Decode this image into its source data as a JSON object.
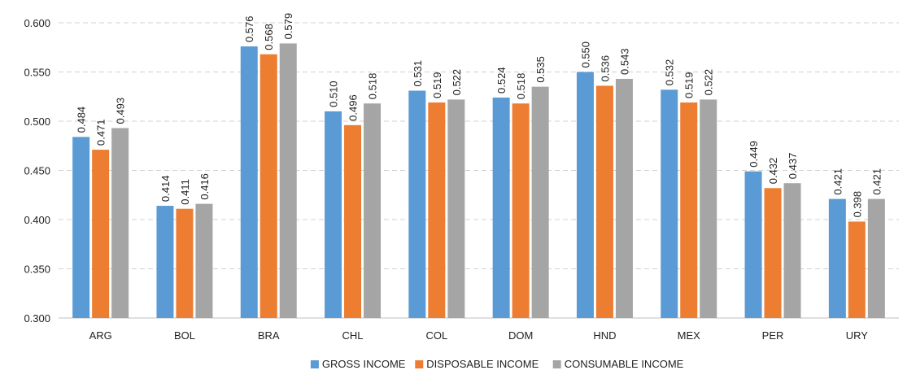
{
  "chart_data": {
    "type": "bar",
    "categories": [
      "ARG",
      "BOL",
      "BRA",
      "CHL",
      "COL",
      "DOM",
      "HND",
      "MEX",
      "PER",
      "URY"
    ],
    "series": [
      {
        "name": "GROSS INCOME",
        "color": "#5b9bd5",
        "values": [
          0.484,
          0.414,
          0.576,
          0.51,
          0.531,
          0.524,
          0.55,
          0.532,
          0.449,
          0.421
        ],
        "value_labels": [
          "0.484",
          "0.414",
          "0.576",
          "0.510",
          "0.531",
          "0.524",
          "0.550",
          "0.532",
          "0.449",
          "0.421"
        ]
      },
      {
        "name": "DISPOSABLE INCOME",
        "color": "#ed7d31",
        "values": [
          0.471,
          0.411,
          0.568,
          0.496,
          0.519,
          0.518,
          0.536,
          0.519,
          0.432,
          0.398
        ],
        "value_labels": [
          "0.471",
          "0.411",
          "0.568",
          "0.496",
          "0.519",
          "0.518",
          "0.536",
          "0.519",
          "0.432",
          "0.398"
        ]
      },
      {
        "name": "CONSUMABLE INCOME",
        "color": "#a5a5a5",
        "values": [
          0.493,
          0.416,
          0.579,
          0.518,
          0.522,
          0.535,
          0.543,
          0.522,
          0.437,
          0.421
        ],
        "value_labels": [
          "0.493",
          "0.416",
          "0.579",
          "0.518",
          "0.522",
          "0.535",
          "0.543",
          "0.522",
          "0.437",
          "0.421"
        ]
      }
    ],
    "ylim": [
      0.3,
      0.6
    ],
    "yticks": [
      {
        "value": 0.3,
        "label": "0.300"
      },
      {
        "value": 0.35,
        "label": "0.350"
      },
      {
        "value": 0.4,
        "label": "0.400"
      },
      {
        "value": 0.45,
        "label": "0.450"
      },
      {
        "value": 0.5,
        "label": "0.500"
      },
      {
        "value": 0.55,
        "label": "0.550"
      },
      {
        "value": 0.6,
        "label": "0.600"
      }
    ],
    "grid": true,
    "legend": "bottom"
  }
}
